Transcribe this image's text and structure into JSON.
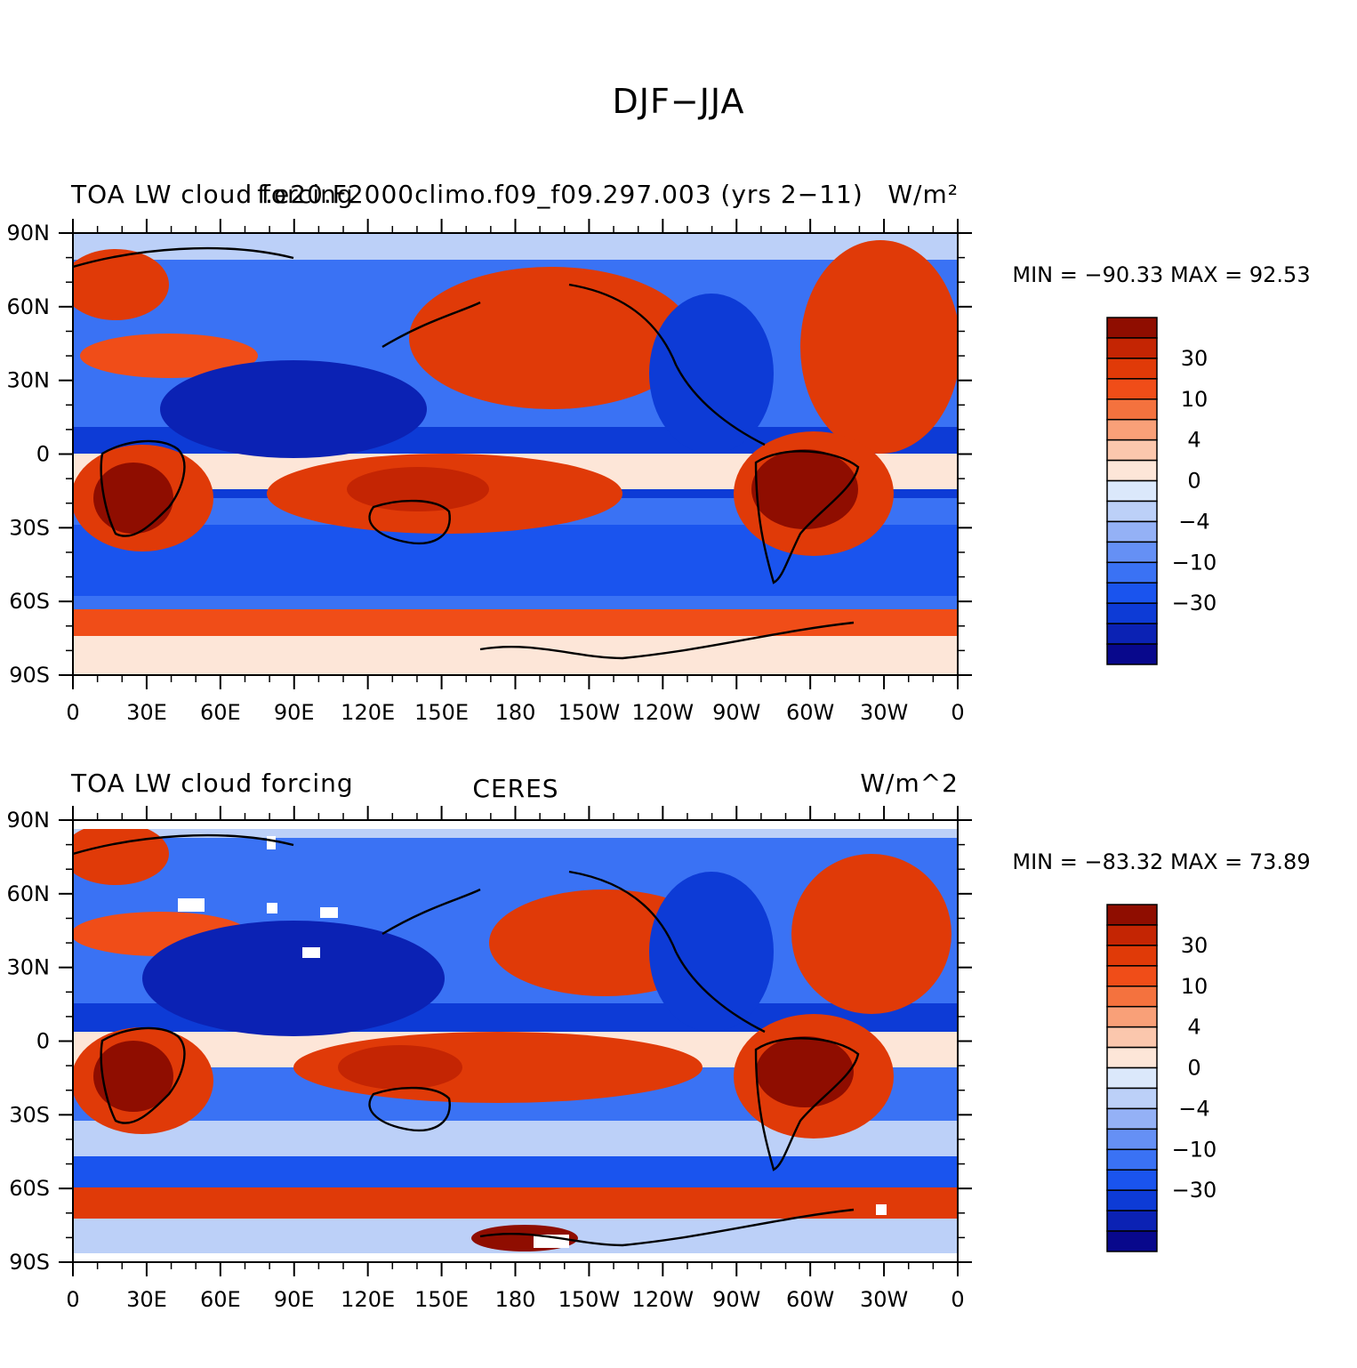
{
  "title": "DJF−JJA",
  "colorbar": {
    "colors": [
      "#08088c",
      "#0b22b4",
      "#0d3bd6",
      "#1a54ee",
      "#3a72f4",
      "#6590f5",
      "#94b1f6",
      "#bcd0f8",
      "#dbe8fb",
      "#fde6d8",
      "#fbc7ad",
      "#f9a078",
      "#f4723e",
      "#f04d18",
      "#e03a08",
      "#c42503",
      "#8f0d00"
    ],
    "labels": [
      "30",
      "10",
      "4",
      "0",
      "−4",
      "−10",
      "−30"
    ]
  },
  "panels": [
    {
      "left_title": "TOA LW cloud forcing",
      "center_title": "f.e20.F2000climo.f09_f09.297.003 (yrs 2−11)",
      "right_title": "W/m²",
      "min_max": "MIN = −90.33  MAX =   92.53",
      "lat_labels": [
        "90N",
        "60N",
        "30N",
        "0",
        "30S",
        "60S",
        "90S"
      ],
      "lon_labels": [
        "0",
        "30E",
        "60E",
        "90E",
        "120E",
        "150E",
        "180",
        "150W",
        "120W",
        "90W",
        "60W",
        "30W",
        "0"
      ]
    },
    {
      "left_title": "TOA LW cloud forcing",
      "center_title": "CERES",
      "right_title": "W/m^2",
      "min_max": "MIN = −83.32  MAX =   73.89",
      "lat_labels": [
        "90N",
        "60N",
        "30N",
        "0",
        "30S",
        "60S",
        "90S"
      ],
      "lon_labels": [
        "0",
        "30E",
        "60E",
        "90E",
        "120E",
        "150E",
        "180",
        "150W",
        "120W",
        "90W",
        "60W",
        "30W",
        "0"
      ]
    }
  ]
}
